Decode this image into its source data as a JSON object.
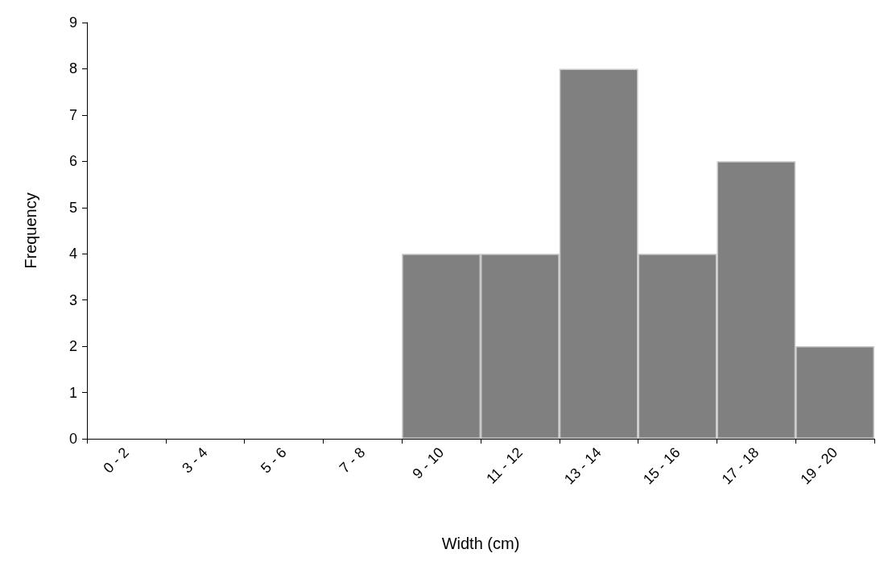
{
  "chart_data": {
    "type": "bar",
    "xlabel": "Width (cm)",
    "ylabel": "Frequency",
    "categories": [
      "0 - 2",
      "3 - 4",
      "5 - 6",
      "7 - 8",
      "9 - 10",
      "11 - 12",
      "13 - 14",
      "15 - 16",
      "17 - 18",
      "19 - 20"
    ],
    "values": [
      0,
      0,
      0,
      0,
      4,
      4,
      8,
      4,
      6,
      2
    ],
    "color": "#808080",
    "ylim": [
      0,
      9
    ],
    "yticks": [
      0,
      1,
      2,
      3,
      4,
      5,
      6,
      7,
      8,
      9
    ],
    "grid": false
  }
}
